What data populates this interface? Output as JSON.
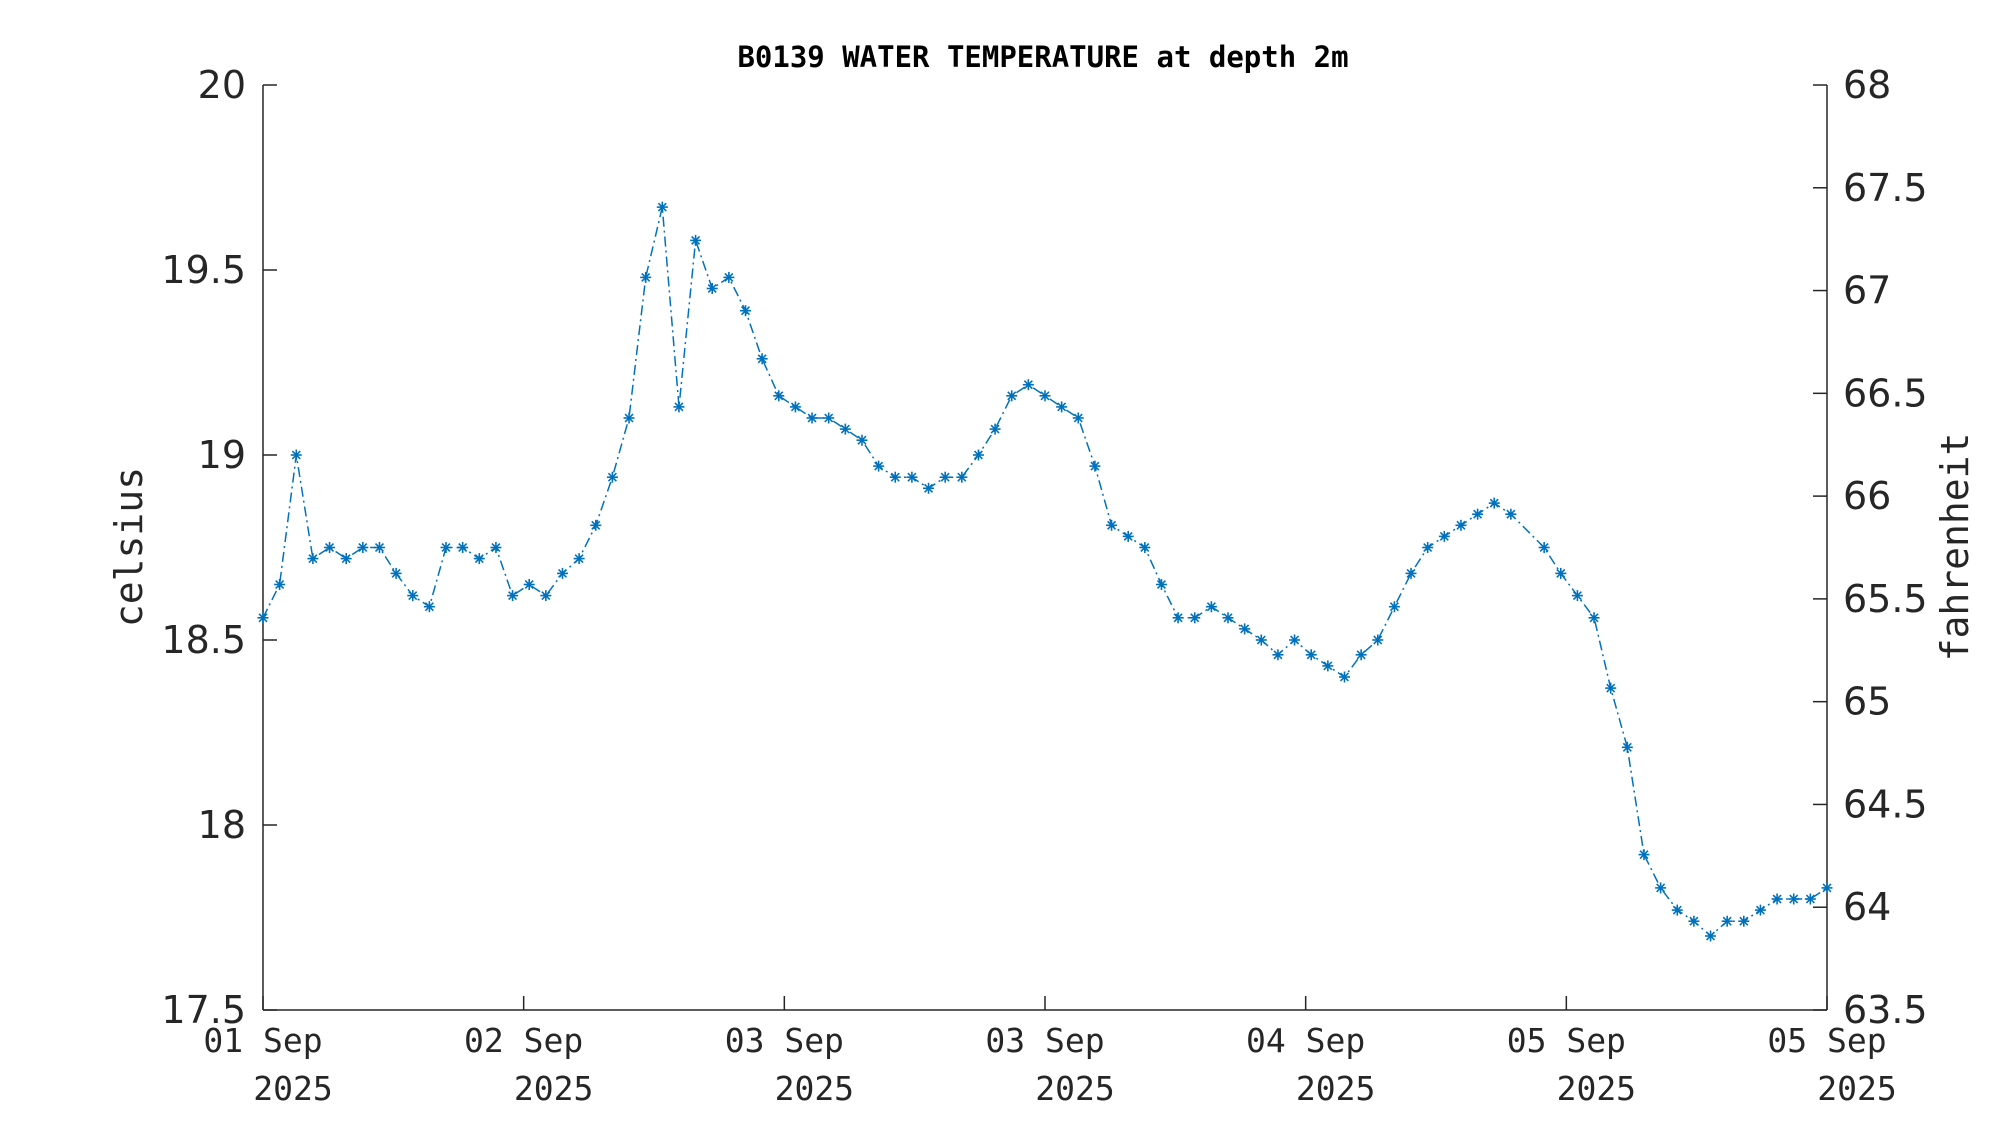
{
  "chart_data": {
    "type": "line",
    "title": "B0139 WATER TEMPERATURE at depth 2m",
    "ylabel": "celsius",
    "ylabel_right": "fahrenheit",
    "xlabel": "",
    "ylim": [
      17.5,
      20
    ],
    "ylim_right": [
      63.5,
      68
    ],
    "y_ticks": [
      "17.5",
      "18",
      "18.5",
      "19",
      "19.5",
      "20"
    ],
    "y_ticks_right": [
      "63.5",
      "64",
      "64.5",
      "65",
      "65.5",
      "66",
      "66.5",
      "67",
      "67.5",
      "68"
    ],
    "x_ticks": [
      {
        "day": "01 Sep",
        "year": "2025"
      },
      {
        "day": "02 Sep",
        "year": "2025"
      },
      {
        "day": "03 Sep",
        "year": "2025"
      },
      {
        "day": "03 Sep",
        "year": "2025"
      },
      {
        "day": "04 Sep",
        "year": "2025"
      },
      {
        "day": "05 Sep",
        "year": "2025"
      },
      {
        "day": "05 Sep",
        "year": "2025"
      }
    ],
    "grid": false,
    "line_style": "dash-dot",
    "marker": "asterisk",
    "series": [
      {
        "color": "#0072bd",
        "values": [
          18.56,
          18.65,
          19.0,
          18.72,
          18.75,
          18.72,
          18.75,
          18.75,
          18.68,
          18.62,
          18.59,
          18.75,
          18.75,
          18.72,
          18.75,
          18.62,
          18.65,
          18.62,
          18.68,
          18.72,
          18.81,
          18.94,
          19.1,
          19.48,
          19.67,
          19.13,
          19.58,
          19.45,
          19.48,
          19.39,
          19.26,
          19.16,
          19.13,
          19.1,
          19.1,
          19.07,
          19.04,
          18.97,
          18.94,
          18.94,
          18.91,
          18.94,
          18.94,
          19.0,
          19.07,
          19.16,
          19.19,
          19.16,
          19.13,
          19.1,
          18.97,
          18.81,
          18.78,
          18.75,
          18.65,
          18.56,
          18.56,
          18.59,
          18.56,
          18.53,
          18.5,
          18.46,
          18.5,
          18.46,
          18.43,
          18.4,
          18.46,
          18.5,
          18.59,
          18.68,
          18.75,
          18.78,
          18.81,
          18.84,
          18.87,
          18.84,
          null,
          18.75,
          18.68,
          18.62,
          18.56,
          18.37,
          18.21,
          17.92,
          17.83,
          17.77,
          17.74,
          17.7,
          17.74,
          17.74,
          17.77,
          17.8,
          17.8,
          17.8,
          17.83
        ]
      }
    ]
  }
}
